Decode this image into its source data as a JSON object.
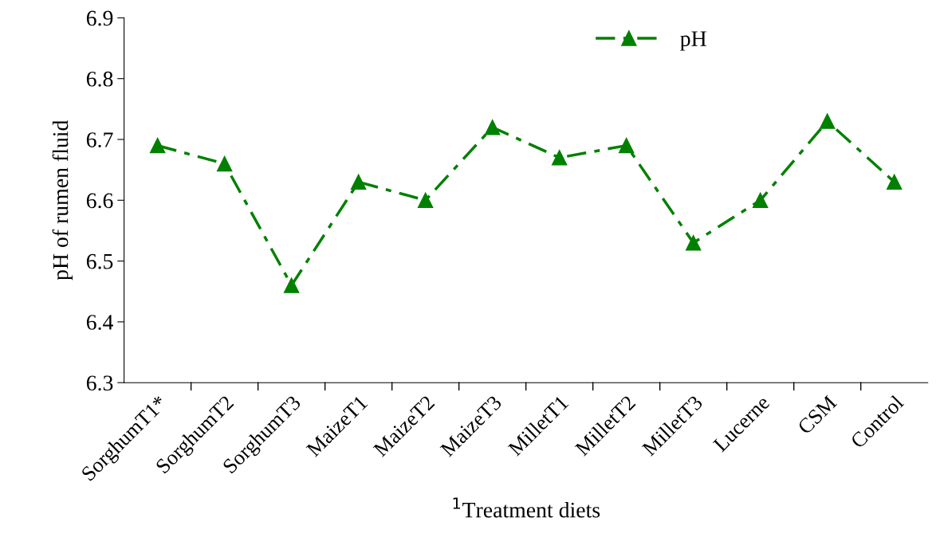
{
  "chart_data": {
    "type": "line",
    "xlabel": "$^{1}$Treatment diets",
    "ylabel": "pH of rumen fluid",
    "categories": [
      "SorghumT1*",
      "SorghumT2",
      "SorghumT3",
      "MaizeT1",
      "MaizeT2",
      "MaizeT3",
      "MilletT1",
      "MilletT2",
      "MilletT3",
      "Lucerne",
      "CSM",
      "Control"
    ],
    "series": [
      {
        "name": "pH",
        "color": "#008000",
        "values": [
          6.69,
          6.66,
          6.46,
          6.63,
          6.6,
          6.72,
          6.67,
          6.69,
          6.53,
          6.6,
          6.73,
          6.63
        ]
      }
    ],
    "ylim": [
      6.3,
      6.9
    ],
    "yticks": [
      6.3,
      6.4,
      6.5,
      6.6,
      6.7,
      6.8,
      6.9
    ],
    "marker": "triangle",
    "line_style": "dashed",
    "legend": "top right",
    "grid": false
  }
}
